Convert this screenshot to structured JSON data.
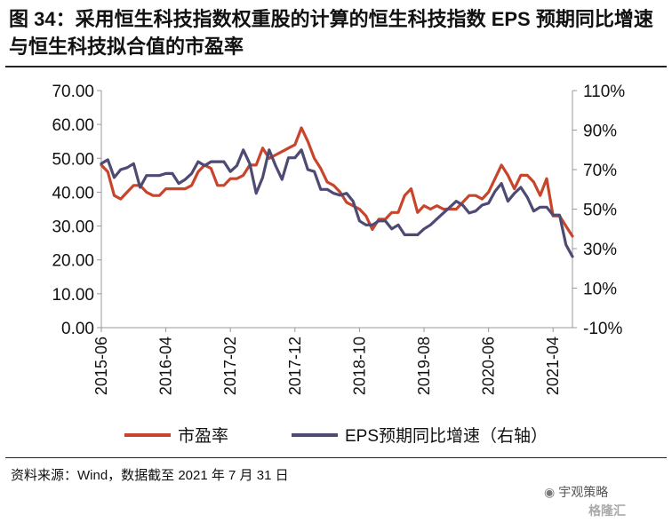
{
  "title": "图 34：采用恒生科技指数权重股的计算的恒生科技指数 EPS 预期同比增速与恒生科技拟合值的市盈率",
  "source": "资料来源：Wind，数据截至 2021 年 7 月 31 日",
  "watermark": {
    "name": "宇观策略",
    "icon": "wechat-icon",
    "logo_text": "格隆汇"
  },
  "colors": {
    "pe": "#C8452B",
    "eps": "#4D4A73",
    "axis": "#999999"
  },
  "chart_data": {
    "type": "line",
    "x_dates": [
      "2015-06",
      "2015-07",
      "2015-08",
      "2015-09",
      "2015-10",
      "2015-11",
      "2015-12",
      "2016-01",
      "2016-02",
      "2016-03",
      "2016-04",
      "2016-05",
      "2016-06",
      "2016-07",
      "2016-08",
      "2016-09",
      "2016-10",
      "2016-11",
      "2016-12",
      "2017-01",
      "2017-02",
      "2017-03",
      "2017-04",
      "2017-05",
      "2017-06",
      "2017-07",
      "2017-08",
      "2017-09",
      "2017-10",
      "2017-11",
      "2017-12",
      "2018-01",
      "2018-02",
      "2018-03",
      "2018-04",
      "2018-05",
      "2018-06",
      "2018-07",
      "2018-08",
      "2018-09",
      "2018-10",
      "2018-11",
      "2018-12",
      "2019-01",
      "2019-02",
      "2019-03",
      "2019-04",
      "2019-05",
      "2019-06",
      "2019-07",
      "2019-08",
      "2019-09",
      "2019-10",
      "2019-11",
      "2019-12",
      "2020-01",
      "2020-02",
      "2020-03",
      "2020-04",
      "2020-05",
      "2020-06",
      "2020-07",
      "2020-08",
      "2020-09",
      "2020-10",
      "2020-11",
      "2020-12",
      "2021-01",
      "2021-02",
      "2021-03",
      "2021-04",
      "2021-05",
      "2021-06",
      "2021-07"
    ],
    "x_ticks": [
      "2015-06",
      "2016-04",
      "2017-02",
      "2017-12",
      "2018-10",
      "2019-08",
      "2020-06",
      "2021-04"
    ],
    "left_axis": {
      "ticks": [
        "0.00",
        "10.00",
        "20.00",
        "30.00",
        "40.00",
        "50.00",
        "60.00",
        "70.00"
      ],
      "ylim": [
        0,
        70
      ]
    },
    "right_axis": {
      "label": "右轴",
      "ticks": [
        "-10%",
        "10%",
        "30%",
        "50%",
        "70%",
        "90%",
        "110%"
      ],
      "ylim": [
        -10,
        110
      ]
    },
    "series": [
      {
        "name": "市盈率",
        "axis": "left",
        "values": [
          48,
          46,
          39,
          38,
          40,
          42,
          42,
          40,
          39,
          39,
          41,
          41,
          41,
          41,
          42,
          46,
          48,
          47,
          42,
          42,
          44,
          44,
          45,
          48,
          48,
          53,
          50,
          51,
          52,
          53,
          54,
          59,
          55,
          50,
          47,
          43,
          42,
          40,
          37,
          36,
          35,
          33,
          29,
          32,
          32,
          34,
          34,
          39,
          41,
          34,
          36,
          35,
          36,
          35,
          35,
          35,
          37,
          39,
          39,
          38,
          40,
          44,
          48,
          45,
          41,
          45,
          45,
          43,
          39,
          44,
          33,
          33,
          30,
          27
        ]
      },
      {
        "name": "EPS预期同比增速",
        "axis": "right",
        "values": [
          73,
          75,
          66,
          70,
          71,
          73,
          61,
          67,
          67,
          67,
          68,
          68,
          63,
          65,
          68,
          74,
          72,
          74,
          74,
          74,
          69,
          72,
          80,
          73,
          58,
          66,
          80,
          72,
          65,
          76,
          76,
          80,
          70,
          69,
          60,
          60,
          58,
          57,
          58,
          54,
          44,
          42,
          42,
          44,
          44,
          40,
          42,
          37,
          37,
          37,
          40,
          42,
          45,
          48,
          51,
          54,
          52,
          48,
          49,
          52,
          53,
          59,
          63,
          54,
          58,
          61,
          56,
          49,
          51,
          51,
          47,
          47,
          32,
          26
        ]
      }
    ],
    "legend": {
      "position": "bottom-center"
    }
  }
}
